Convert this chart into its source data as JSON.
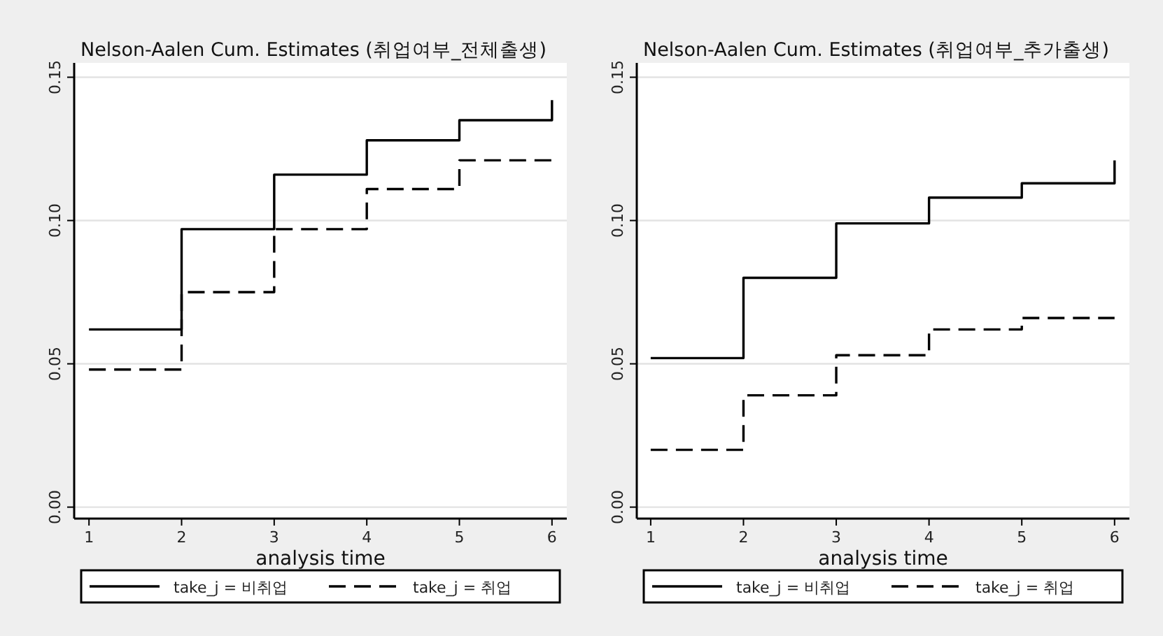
{
  "chart_data": [
    {
      "type": "step",
      "title": "Nelson-Aalen Cum. Estimates (취업여부_전체출생)",
      "xlabel": "analysis time",
      "x": [
        1,
        2,
        3,
        4,
        5,
        6
      ],
      "xlim": [
        0.84,
        6.16
      ],
      "xticks": [
        1,
        2,
        3,
        4,
        5,
        6
      ],
      "ylim": [
        -0.004,
        0.155
      ],
      "yticks": [
        {
          "value": 0,
          "label": "0.00"
        },
        {
          "value": 0.05,
          "label": "0.05"
        },
        {
          "value": 0.1,
          "label": "0.10"
        },
        {
          "value": 0.15,
          "label": "0.15"
        }
      ],
      "grid": "y",
      "legend": "bottom",
      "series": [
        {
          "name": "take_j = 비취업",
          "color": "#000000",
          "line_style": "solid",
          "values": [
            0.062,
            0.097,
            0.116,
            0.128,
            0.135,
            0.142
          ]
        },
        {
          "name": "take_j = 취업",
          "color": "#000000",
          "line_style": "dashed",
          "values": [
            0.048,
            0.075,
            0.097,
            0.111,
            0.121,
            0.121
          ]
        }
      ]
    },
    {
      "type": "step",
      "title": "Nelson-Aalen Cum. Estimates (취업여부_추가출생)",
      "xlabel": "analysis time",
      "x": [
        1,
        2,
        3,
        4,
        5,
        6
      ],
      "xlim": [
        0.85,
        6.16
      ],
      "xticks": [
        1,
        2,
        3,
        4,
        5,
        6
      ],
      "ylim": [
        -0.004,
        0.155
      ],
      "yticks": [
        {
          "value": 0,
          "label": "0.00"
        },
        {
          "value": 0.05,
          "label": "0.05"
        },
        {
          "value": 0.1,
          "label": "0.10"
        },
        {
          "value": 0.15,
          "label": "0.15"
        }
      ],
      "grid": "y",
      "legend": "bottom",
      "series": [
        {
          "name": "take_j = 비취업",
          "color": "#000000",
          "line_style": "solid",
          "values": [
            0.052,
            0.08,
            0.099,
            0.108,
            0.113,
            0.121
          ]
        },
        {
          "name": "take_j = 취업",
          "color": "#000000",
          "line_style": "dashed",
          "values": [
            0.02,
            0.039,
            0.053,
            0.062,
            0.066,
            0.066
          ]
        }
      ]
    }
  ]
}
